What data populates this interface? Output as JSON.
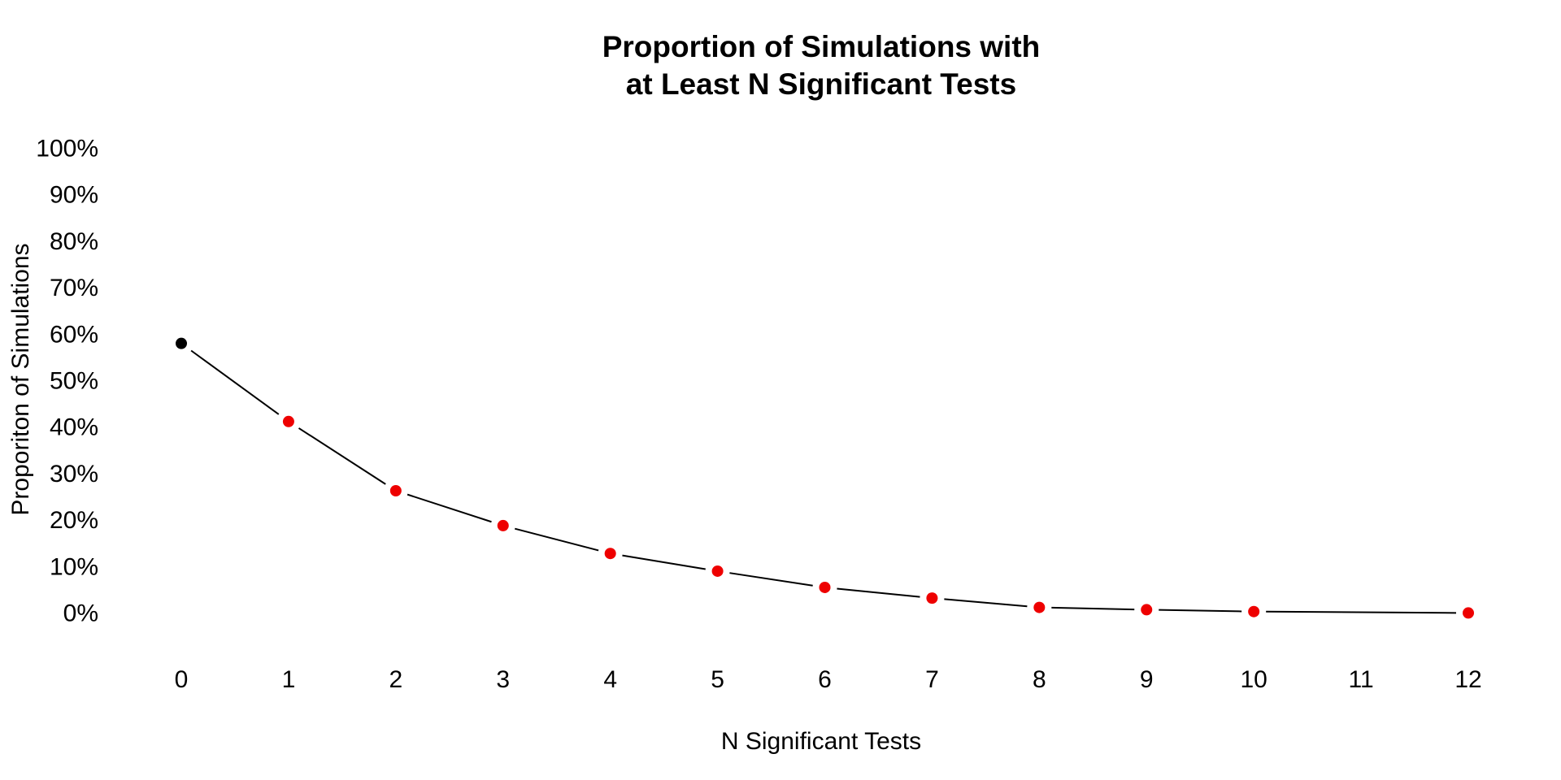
{
  "chart_data": {
    "type": "line",
    "title_lines": [
      "Proportion of Simulations with",
      "at Least N Significant Tests"
    ],
    "xlabel": "N Significant Tests",
    "ylabel": "Proporiton of Simulations",
    "x_ticks": [
      "0",
      "1",
      "2",
      "3",
      "4",
      "5",
      "6",
      "7",
      "8",
      "9",
      "10",
      "11",
      "12"
    ],
    "y_ticks": [
      "0%",
      "10%",
      "20%",
      "30%",
      "40%",
      "50%",
      "60%",
      "70%",
      "80%",
      "90%",
      "100%"
    ],
    "xlim": [
      0,
      12
    ],
    "ylim": [
      0,
      100
    ],
    "grid": false,
    "series": [
      {
        "x": [
          0,
          1,
          2,
          3,
          4,
          5,
          6,
          7,
          8,
          9,
          10,
          12
        ],
        "values": [
          58.1,
          41.3,
          26.4,
          18.9,
          12.9,
          9.1,
          5.6,
          3.3,
          1.3,
          0.8,
          0.4,
          0.1
        ]
      }
    ],
    "point_colors": [
      "#000000",
      "#ee0000",
      "#ee0000",
      "#ee0000",
      "#ee0000",
      "#ee0000",
      "#ee0000",
      "#ee0000",
      "#ee0000",
      "#ee0000",
      "#ee0000",
      "#ee0000"
    ],
    "line_color": "#000000"
  }
}
